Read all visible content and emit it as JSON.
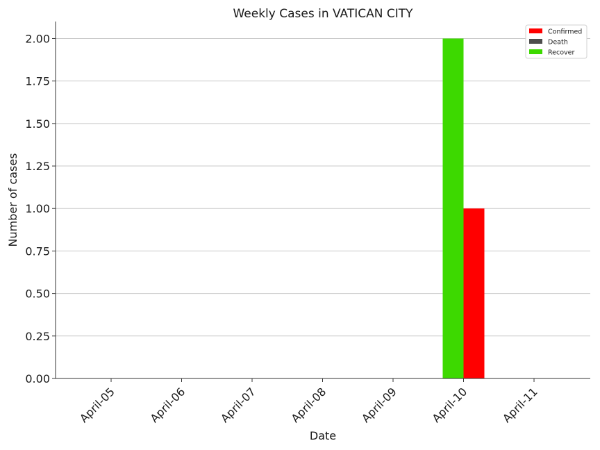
{
  "chart_data": {
    "type": "bar",
    "title": "Weekly Cases in VATICAN CITY",
    "xlabel": "Date",
    "ylabel": "Number of cases",
    "categories": [
      "April-05",
      "April-06",
      "April-07",
      "April-08",
      "April-09",
      "April-10",
      "April-11"
    ],
    "series": [
      {
        "name": "Confirmed",
        "color": "#ff0000",
        "values": [
          0,
          0,
          0,
          0,
          0,
          1,
          0
        ]
      },
      {
        "name": "Death",
        "color": "#4d4d4d",
        "values": [
          0,
          0,
          0,
          0,
          0,
          0,
          0
        ]
      },
      {
        "name": "Recover",
        "color": "#3dd900",
        "values": [
          0,
          0,
          0,
          0,
          0,
          2,
          0
        ]
      }
    ],
    "ylim": [
      0,
      2.1
    ],
    "yticks": [
      "0.00",
      "0.25",
      "0.50",
      "0.75",
      "1.00",
      "1.25",
      "1.50",
      "1.75",
      "2.00"
    ],
    "grid": "horizontal",
    "legend_position": "top-right",
    "xtick_rotation": 45
  }
}
